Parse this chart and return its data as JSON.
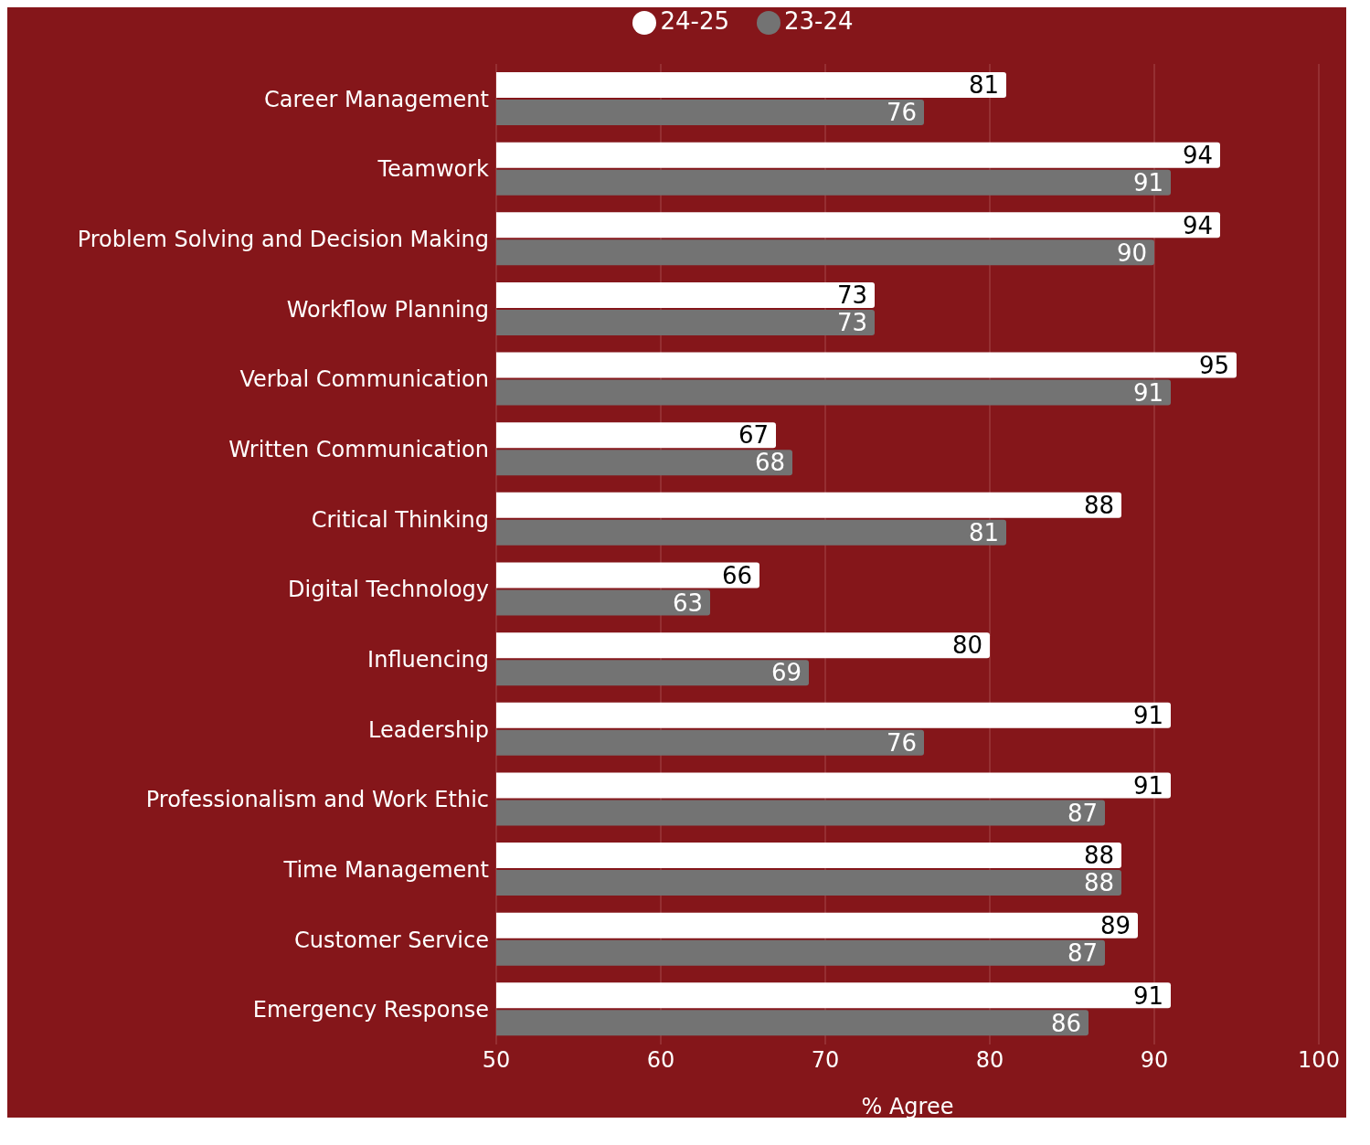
{
  "chart_data": {
    "type": "bar",
    "orientation": "horizontal",
    "xlabel": "% Agree",
    "categories": [
      "Career Management",
      "Teamwork",
      "Problem Solving and Decision Making",
      "Workflow Planning",
      "Verbal Communication",
      "Written Communication",
      "Critical Thinking",
      "Digital Technology",
      "Influencing",
      "Leadership",
      "Professionalism and Work Ethic",
      "Time Management",
      "Customer Service",
      "Emergency Response"
    ],
    "series": [
      {
        "name": "24-25",
        "color": "#ffffff",
        "values": [
          81,
          94,
          94,
          73,
          95,
          67,
          88,
          66,
          80,
          91,
          91,
          88,
          89,
          91
        ]
      },
      {
        "name": "23-24",
        "color": "#737373",
        "values": [
          76,
          91,
          90,
          73,
          91,
          68,
          81,
          63,
          69,
          76,
          87,
          88,
          87,
          86
        ]
      }
    ],
    "xlim": [
      50,
      100
    ],
    "xticks": [
      50,
      60,
      70,
      80,
      90,
      100
    ],
    "grid": "x",
    "legend": "top",
    "data_labels": true
  }
}
